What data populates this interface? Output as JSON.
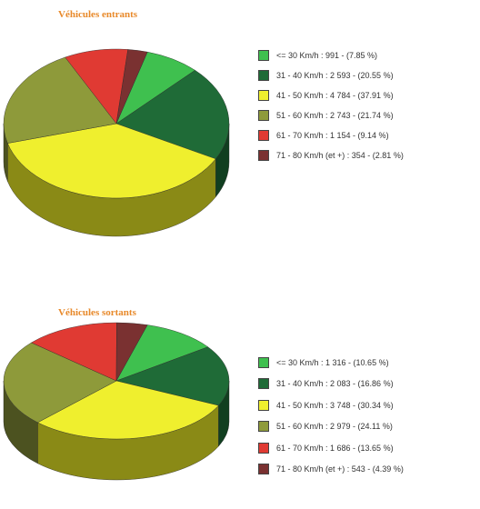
{
  "colors": {
    "title": "#e8892a",
    "slices": [
      "#3fc04f",
      "#1f6b37",
      "#efef2e",
      "#8e9a3a",
      "#e03a33",
      "#7a3131"
    ],
    "sides": [
      "#2a7f35",
      "#113f20",
      "#8a8a16",
      "#4c5220",
      "#8a1f1b",
      "#401818"
    ]
  },
  "chart_data": [
    {
      "type": "pie",
      "title": "Véhicules entrants",
      "categories": [
        "<= 30 Km/h",
        "31 - 40 Km/h",
        "41 - 50 Km/h",
        "51 - 60 Km/h",
        "61 - 70 Km/h",
        "71 - 80 Km/h (et +)"
      ],
      "values": [
        991,
        2593,
        4784,
        2743,
        1154,
        354
      ],
      "percents": [
        7.85,
        20.55,
        37.91,
        21.74,
        9.14,
        2.81
      ],
      "legend": [
        "<= 30 Km/h :   991 -  (7.85 %)",
        "31 - 40 Km/h : 2 593 - (20.55 %)",
        "41 - 50 Km/h : 4 784 - (37.91 %)",
        "51 - 60 Km/h : 2 743 - (21.74 %)",
        "61 - 70 Km/h : 1 154 -  (9.14 %)",
        "71 - 80 Km/h (et +) :    354 - (2.81 %)"
      ],
      "legend_position": "right"
    },
    {
      "type": "pie",
      "title": "Véhicules sortants",
      "categories": [
        "<= 30 Km/h",
        "31 - 40 Km/h",
        "41 - 50 Km/h",
        "51 - 60 Km/h",
        "61 - 70 Km/h",
        "71 - 80 Km/h (et +)"
      ],
      "values": [
        1316,
        2083,
        3748,
        2979,
        1686,
        543
      ],
      "percents": [
        10.65,
        16.86,
        30.34,
        24.11,
        13.65,
        4.39
      ],
      "legend": [
        "<= 30 Km/h : 1 316 - (10.65 %)",
        "31 - 40 Km/h : 2 083 - (16.86 %)",
        "41 - 50 Km/h : 3 748 - (30.34 %)",
        "51 - 60 Km/h : 2 979 - (24.11 %)",
        "61 - 70 Km/h : 1 686 - (13.65 %)",
        "71 - 80 Km/h (et +) :    543 - (4.39 %)"
      ],
      "legend_position": "right"
    }
  ]
}
